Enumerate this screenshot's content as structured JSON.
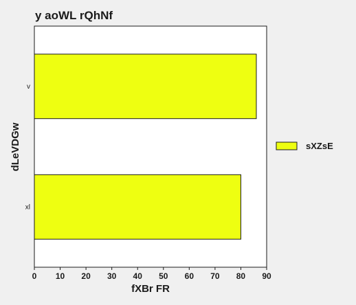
{
  "chart_data": {
    "type": "bar",
    "orientation": "horizontal",
    "title": "y aoWL rQhNf",
    "xlabel": "fXBr FR",
    "ylabel": "dLeVDGw",
    "categories": [
      "v",
      "xl"
    ],
    "series": [
      {
        "name": "sXZsE",
        "values": [
          86,
          80
        ],
        "color": "#eeff11"
      }
    ],
    "xlim": [
      0,
      90
    ],
    "xticks": [
      0,
      10,
      20,
      30,
      40,
      50,
      60,
      70,
      80,
      90
    ],
    "grid": false,
    "legend_position": "right"
  }
}
